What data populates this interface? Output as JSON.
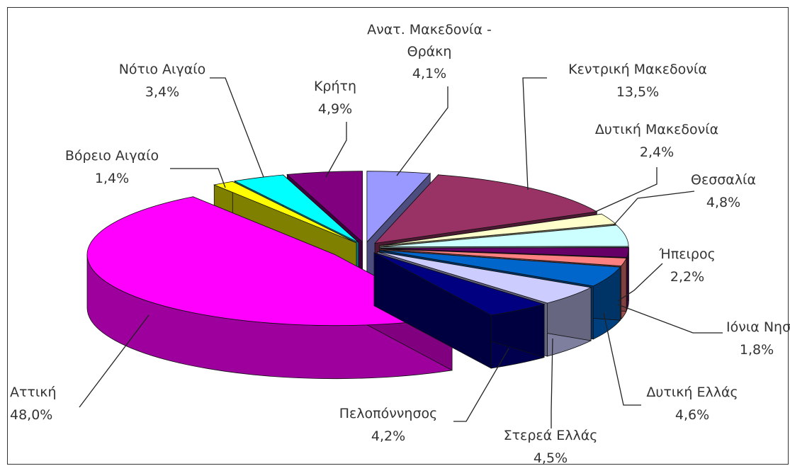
{
  "chart_data": {
    "type": "pie",
    "categories": [
      "Ανατ. Μακεδονία - Θράκη",
      "Κεντρική Μακεδονία",
      "Δυτική Μακεδονία",
      "Θεσσαλία",
      "Ήπειρος",
      "Ιόνια Νησιά",
      "Δυτική Ελλάς",
      "Στερεά Ελλάς",
      "Πελοπόννησος",
      "Αττική",
      "Βόρειο Αιγαίο",
      "Νότιο Αιγαίο",
      "Κρήτη"
    ],
    "values": [
      4.1,
      13.5,
      2.4,
      4.8,
      2.2,
      1.8,
      4.6,
      4.5,
      4.2,
      48.0,
      1.4,
      3.4,
      4.9
    ],
    "unit": "%",
    "colors": [
      "#9999ff",
      "#993366",
      "#ffffcc",
      "#ccffff",
      "#660066",
      "#ff8080",
      "#0066cc",
      "#ccccff",
      "#000080",
      "#ff00ff",
      "#ffff00",
      "#00ffff",
      "#800080"
    ],
    "exploded": true,
    "three_d": true
  },
  "labels": [
    {
      "name": "Ανατ. Μακεδονία -",
      "name2": "Θράκη",
      "pct": "4,1%"
    },
    {
      "name": "Κεντρική Μακεδονία",
      "pct": "13,5%"
    },
    {
      "name": "Δυτική Μακεδονία",
      "pct": "2,4%"
    },
    {
      "name": "Θεσσαλία",
      "pct": "4,8%"
    },
    {
      "name": "Ήπειρος",
      "pct": "2,2%"
    },
    {
      "name": "Ιόνια Νησιά",
      "pct": "1,8%"
    },
    {
      "name": "Δυτική Ελλάς",
      "pct": "4,6%"
    },
    {
      "name": "Στερεά Ελλάς",
      "pct": "4,5%"
    },
    {
      "name": "Πελοπόννησος",
      "pct": "4,2%"
    },
    {
      "name": "Αττική",
      "pct": "48,0%"
    },
    {
      "name": "Βόρειο Αιγαίο",
      "pct": "1,4%"
    },
    {
      "name": "Νότιο Αιγαίο",
      "pct": "3,4%"
    },
    {
      "name": "Κρήτη",
      "pct": "4,9%"
    }
  ]
}
